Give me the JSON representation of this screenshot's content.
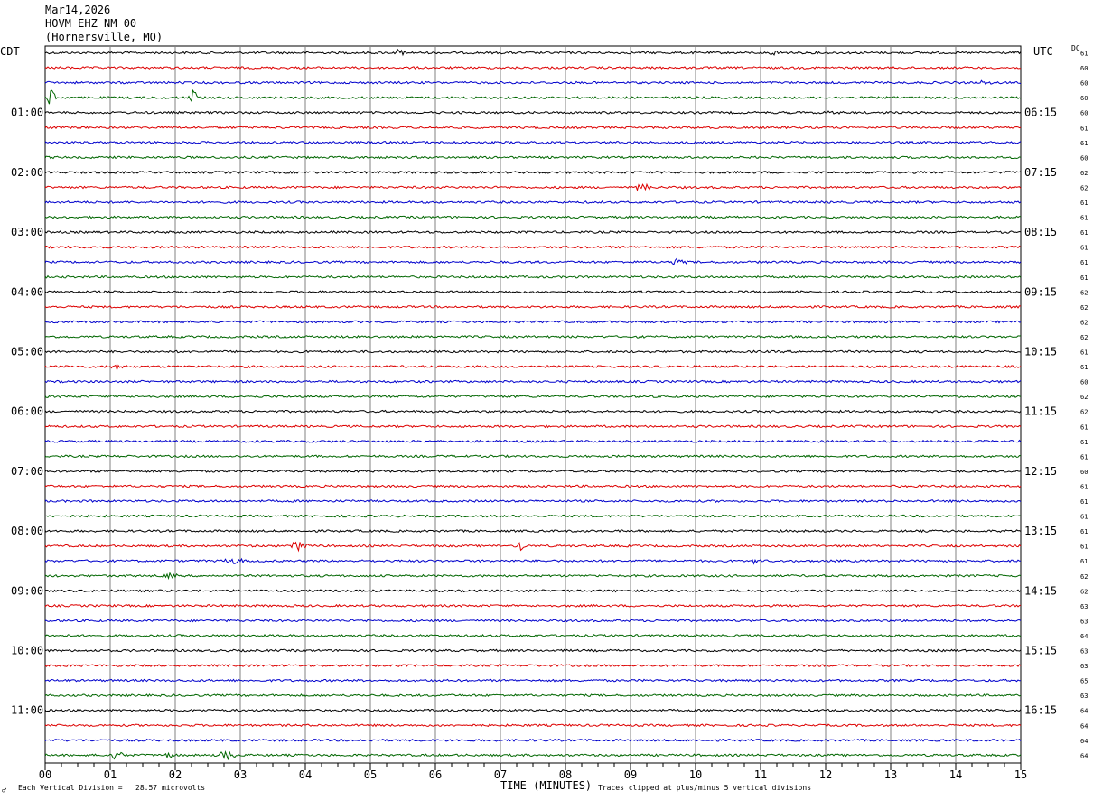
{
  "header": {
    "date": "Mar14,2026",
    "station": "HOVM EHZ NM 00",
    "location": "(Hornersville, MO)"
  },
  "left_zone": "CDT",
  "right_zone": "UTC",
  "dc_label": "DC",
  "footer": {
    "xlabel": "TIME (MINUTES)",
    "scale_note": "Each Vertical Division =   28.57 microvolts",
    "clip_note": "Traces clipped at plus/minus 5 vertical divisions",
    "corner_mark": "♂"
  },
  "colors": {
    "cycle": [
      "#000000",
      "#dd0000",
      "#0000cc",
      "#006600"
    ],
    "grid": "#808080"
  },
  "chart_data": {
    "type": "line",
    "title": "Mar14,2026 HOVM EHZ NM 00 (Hornersville, MO)",
    "xlabel": "TIME (MINUTES)",
    "xlim": [
      0,
      15
    ],
    "x_ticks": [
      "00",
      "01",
      "02",
      "03",
      "04",
      "05",
      "06",
      "07",
      "08",
      "09",
      "10",
      "11",
      "12",
      "13",
      "14",
      "15"
    ],
    "left_time_labels": [
      "01:00",
      "02:00",
      "03:00",
      "04:00",
      "05:00",
      "06:00",
      "07:00",
      "08:00",
      "09:00",
      "10:00",
      "11:00"
    ],
    "right_time_labels": [
      "06:15",
      "07:15",
      "08:15",
      "09:15",
      "10:15",
      "11:15",
      "12:15",
      "13:15",
      "14:15",
      "15:15",
      "16:15"
    ],
    "dc_offsets": [
      61,
      60,
      60,
      60,
      60,
      61,
      61,
      60,
      62,
      62,
      61,
      61,
      61,
      61,
      61,
      61,
      62,
      62,
      62,
      62,
      61,
      61,
      60,
      62,
      62,
      61,
      61,
      61,
      60,
      61,
      61,
      61,
      61,
      61,
      61,
      62,
      62,
      63,
      63,
      64,
      63,
      63,
      65,
      63,
      64,
      64,
      64,
      64
    ],
    "trace_count": 48,
    "minutes_per_trace": 15,
    "events": [
      {
        "trace": 0,
        "minute": 5.45,
        "amp": 2.2
      },
      {
        "trace": 0,
        "minute": 11.2,
        "amp": 0.8
      },
      {
        "trace": 2,
        "minute": 14.4,
        "amp": 0.9
      },
      {
        "trace": 3,
        "minute": 0.1,
        "amp": 5
      },
      {
        "trace": 3,
        "minute": 2.28,
        "amp": 4
      },
      {
        "trace": 4,
        "minute": 12.1,
        "amp": 1
      },
      {
        "trace": 9,
        "minute": 9.2,
        "amp": 1.6
      },
      {
        "trace": 14,
        "minute": 9.7,
        "amp": 1.3
      },
      {
        "trace": 21,
        "minute": 1.1,
        "amp": 1
      },
      {
        "trace": 33,
        "minute": 3.9,
        "amp": 2
      },
      {
        "trace": 33,
        "minute": 7.3,
        "amp": 2.6
      },
      {
        "trace": 34,
        "minute": 2.9,
        "amp": 1.4
      },
      {
        "trace": 34,
        "minute": 10.9,
        "amp": 0.9
      },
      {
        "trace": 35,
        "minute": 1.9,
        "amp": 1
      },
      {
        "trace": 47,
        "minute": 1.1,
        "amp": 1.5
      },
      {
        "trace": 47,
        "minute": 1.9,
        "amp": 2.2
      },
      {
        "trace": 47,
        "minute": 2.8,
        "amp": 1.8
      }
    ]
  }
}
